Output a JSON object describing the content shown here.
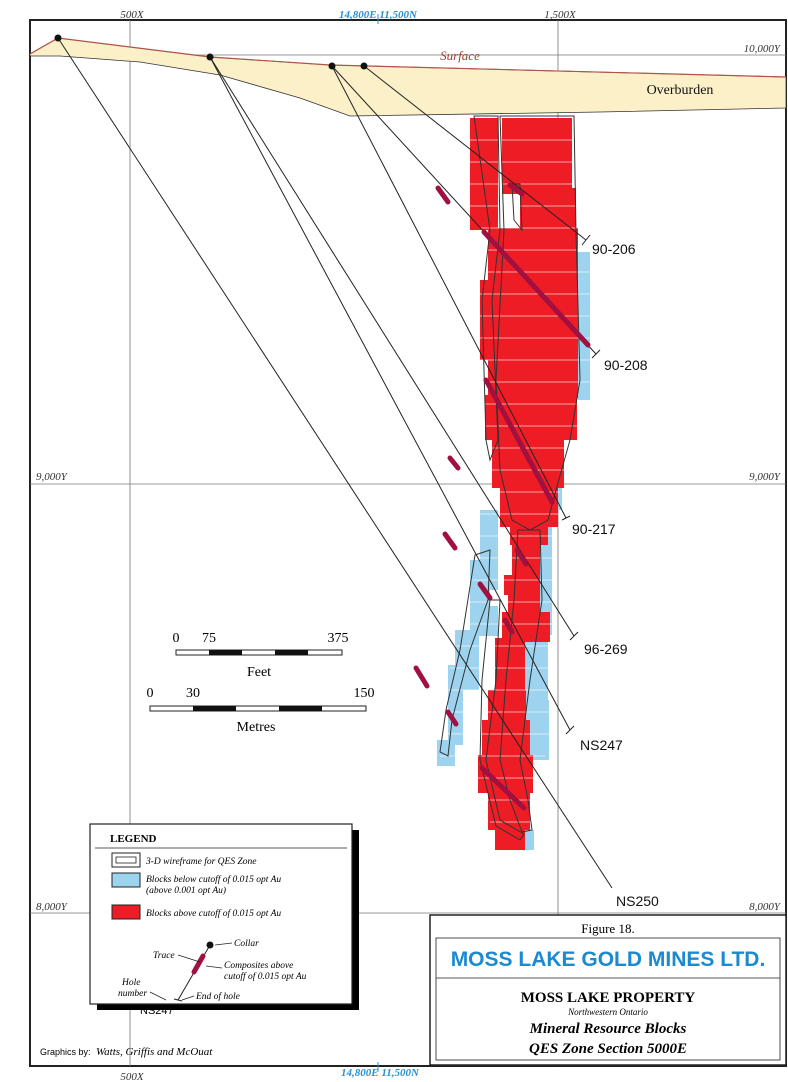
{
  "grid_labels": {
    "x_500": "500X",
    "x_1500": "1,500X",
    "top_center": "14,800E  11,500N",
    "bottom_center": "14,800E  11,500N",
    "y_10000": "10,000Y",
    "y_9000": "9,000Y",
    "y_8000": "8,000Y"
  },
  "surface_label": "Surface",
  "overburden_label": "Overburden",
  "holes": [
    "90-206",
    "90-208",
    "90-217",
    "96-269",
    "NS247",
    "NS250"
  ],
  "scale_feet": {
    "ticks": [
      "0",
      "75",
      "375"
    ],
    "unit": "Feet"
  },
  "scale_metres": {
    "ticks": [
      "0",
      "30",
      "150"
    ],
    "unit": "Metres"
  },
  "legend": {
    "title": "LEGEND",
    "wireframe": "3-D wireframe for QES Zone",
    "below_1": "Blocks below cutoff of 0.015 opt Au",
    "below_2": "(above 0.001 opt Au)",
    "above": "Blocks above cutoff of 0.015 opt Au",
    "trace": "Trace",
    "collar": "Collar",
    "composites_1": "Composites above",
    "composites_2": "cutoff of 0.015 opt Au",
    "hole_1": "Hole",
    "hole_2": "number",
    "end_of_hole": "End of hole",
    "example_hole": "NS247"
  },
  "credits": {
    "prefix": "Graphics by:",
    "names": "Watts, Griffis and McOuat"
  },
  "title_block": {
    "figure": "Figure 18.",
    "company": "MOSS LAKE GOLD MINES LTD.",
    "property": "MOSS LAKE PROPERTY",
    "region": "Northwestern Ontario",
    "subtitle": "Mineral Resource Blocks",
    "section": "QES Zone Section 5000E"
  },
  "colors": {
    "above_cutoff": "#ee1c25",
    "below_cutoff": "#9dd3ee",
    "composite": "#a01040",
    "overburden": "#fbf0c8",
    "grid_label_blue": "#2a8fd0",
    "company_blue": "#1c8ad0"
  }
}
